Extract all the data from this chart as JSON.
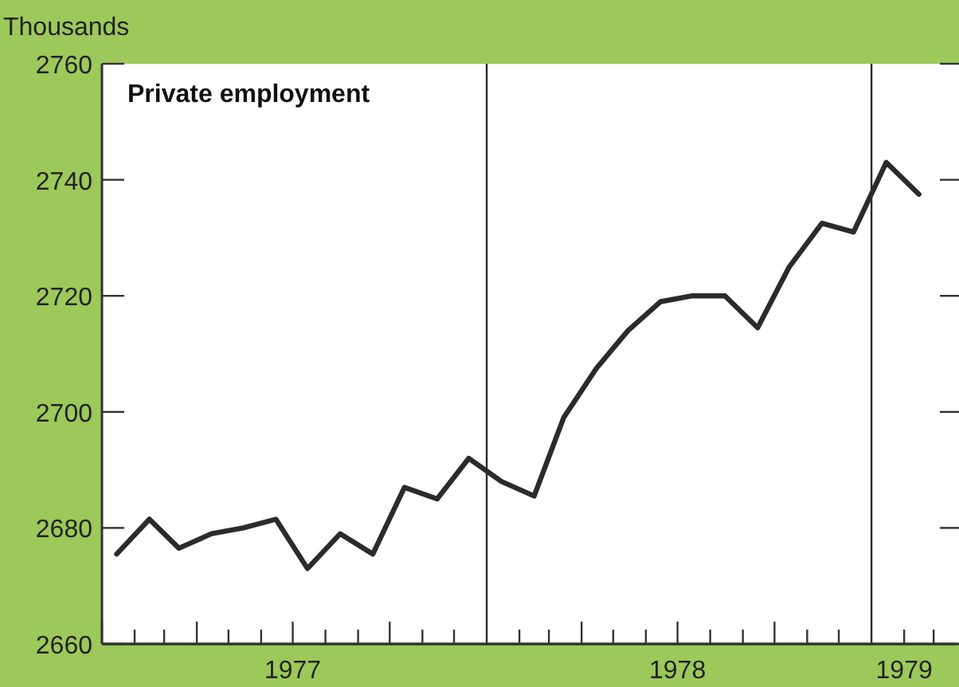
{
  "chart_data": {
    "type": "line",
    "title": "Private employment",
    "ylabel": "Thousands",
    "x": [
      "1977-01-15",
      "1977-02-15",
      "1977-03-15",
      "1977-04-15",
      "1977-05-15",
      "1977-06-15",
      "1977-07-15",
      "1977-08-15",
      "1977-09-15",
      "1977-10-15",
      "1977-11-15",
      "1977-12-15",
      "1978-01-15",
      "1978-02-15",
      "1978-03-15",
      "1978-04-15",
      "1978-05-15",
      "1978-06-15",
      "1978-07-15",
      "1978-08-15",
      "1978-09-15",
      "1978-10-15",
      "1978-11-15",
      "1978-12-15",
      "1979-01-15",
      "1979-02-15"
    ],
    "series": [
      {
        "color": "#2b2b2b",
        "values": [
          2675.5,
          2681.5,
          2676.5,
          2679,
          2680,
          2681.5,
          2673,
          2679,
          2675.5,
          2687,
          2685,
          2692,
          2688,
          2685.5,
          2699,
          2707.5,
          2714,
          2719,
          2720,
          2720,
          2714.5,
          2725,
          2732.5,
          2731,
          2743,
          2737.5
        ]
      }
    ],
    "xlim": [
      "1977-01-01",
      "1979-03-22"
    ],
    "xticks": [
      {
        "value": "1977-01-01",
        "label": null
      },
      {
        "value": "1977-02-01",
        "label": null
      },
      {
        "value": "1977-03-01",
        "label": null
      },
      {
        "value": "1977-04-01",
        "label": null
      },
      {
        "value": "1977-05-01",
        "label": null
      },
      {
        "value": "1977-06-01",
        "label": null
      },
      {
        "value": "1977-07-01",
        "label": "1977"
      },
      {
        "value": "1977-08-01",
        "label": null
      },
      {
        "value": "1977-09-01",
        "label": null
      },
      {
        "value": "1977-10-01",
        "label": null
      },
      {
        "value": "1977-11-01",
        "label": null
      },
      {
        "value": "1977-12-01",
        "label": null
      },
      {
        "value": "1978-02-01",
        "label": null
      },
      {
        "value": "1978-03-01",
        "label": null
      },
      {
        "value": "1978-04-01",
        "label": null
      },
      {
        "value": "1978-05-01",
        "label": null
      },
      {
        "value": "1978-06-01",
        "label": null
      },
      {
        "value": "1978-07-01",
        "label": "1978"
      },
      {
        "value": "1978-08-01",
        "label": null
      },
      {
        "value": "1978-09-01",
        "label": null
      },
      {
        "value": "1978-10-01",
        "label": null
      },
      {
        "value": "1978-11-01",
        "label": null
      },
      {
        "value": "1978-12-01",
        "label": null
      },
      {
        "value": "1979-02-01",
        "label": "1979"
      },
      {
        "value": "1979-03-01",
        "label": null
      }
    ],
    "ylim": [
      2660,
      2760
    ],
    "yticks": [
      2660,
      2680,
      2700,
      2720,
      2740,
      2760
    ],
    "ref_lines": [
      {
        "axis": "x",
        "value": "1978-01-01",
        "color": "#2b2b2b"
      },
      {
        "axis": "x",
        "value": "1979-01-01",
        "color": "#2b2b2b"
      }
    ],
    "grid": false,
    "legend": false,
    "marker": "none",
    "line_style": "solid"
  }
}
